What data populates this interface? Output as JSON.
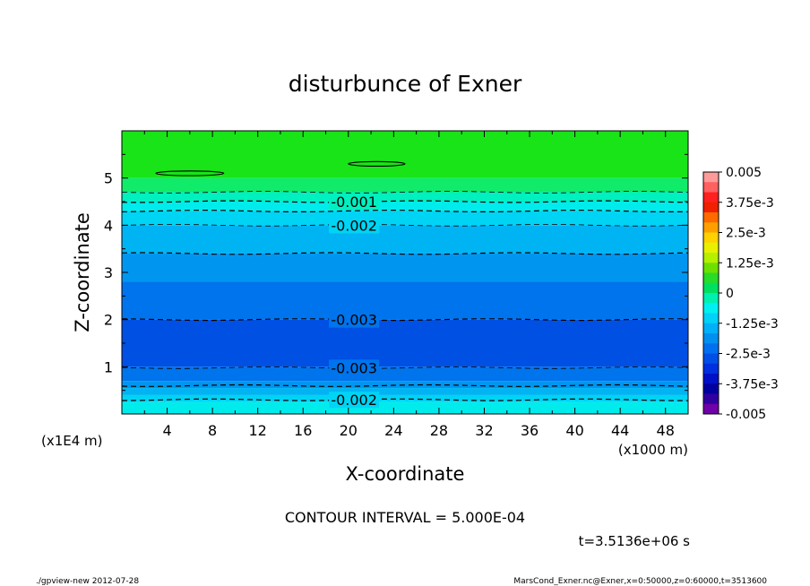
{
  "chart_data": {
    "type": "heatmap",
    "title": "disturbunce of Exner",
    "xlabel": "X-coordinate",
    "ylabel": "Z-coordinate",
    "x_unit": "(x1000 m)",
    "y_unit": "(x1E4 m)",
    "xlim": [
      0,
      50
    ],
    "ylim": [
      0,
      6
    ],
    "x_ticks": [
      "4",
      "8",
      "12",
      "16",
      "20",
      "24",
      "28",
      "32",
      "36",
      "40",
      "44",
      "48"
    ],
    "y_ticks": [
      "1",
      "2",
      "3",
      "4",
      "5"
    ],
    "colorbar": {
      "labels": [
        "0.005",
        "3.75e-3",
        "2.5e-3",
        "1.25e-3",
        "0",
        "-1.25e-3",
        "-2.5e-3",
        "-3.75e-3",
        "-0.005"
      ],
      "colors": [
        "#ff9a9a",
        "#ff6060",
        "#ff2020",
        "#f02000",
        "#ff6a00",
        "#ffa000",
        "#ffd200",
        "#e8f000",
        "#b4f000",
        "#6ee000",
        "#28dc28",
        "#00e060",
        "#00f0b0",
        "#00f0f0",
        "#00d2f8",
        "#00b0f8",
        "#0090f0",
        "#0070f0",
        "#0050e8",
        "#0030e0",
        "#0010c8",
        "#0000a0",
        "#3000a0",
        "#7000a8"
      ]
    },
    "fill_bands": [
      {
        "z": [
          5.0,
          6.0
        ],
        "color": "#18e418"
      },
      {
        "z": [
          4.7,
          5.0
        ],
        "color": "#10ec6a"
      },
      {
        "z": [
          4.5,
          4.7
        ],
        "color": "#00f0c0"
      },
      {
        "z": [
          4.3,
          4.5
        ],
        "color": "#00ecec"
      },
      {
        "z": [
          4.0,
          4.3
        ],
        "color": "#00d4f4"
      },
      {
        "z": [
          3.4,
          4.0
        ],
        "color": "#00b4f4"
      },
      {
        "z": [
          2.8,
          3.4
        ],
        "color": "#0096f0"
      },
      {
        "z": [
          2.0,
          2.8
        ],
        "color": "#0074ec"
      },
      {
        "z": [
          1.0,
          2.0
        ],
        "color": "#0050e4"
      },
      {
        "z": [
          0.7,
          1.0
        ],
        "color": "#0074ec"
      },
      {
        "z": [
          0.55,
          0.7
        ],
        "color": "#0096f0"
      },
      {
        "z": [
          0.4,
          0.55
        ],
        "color": "#00b4f4"
      },
      {
        "z": [
          0.25,
          0.4
        ],
        "color": "#00d4f4"
      },
      {
        "z": [
          0.0,
          0.25
        ],
        "color": "#00ecec"
      }
    ],
    "contours": [
      {
        "z": 4.7,
        "label": "",
        "style": "dashed"
      },
      {
        "z": 4.5,
        "label": "-0.001",
        "style": "dashed"
      },
      {
        "z": 4.3,
        "label": "",
        "style": "dashed"
      },
      {
        "z": 4.0,
        "label": "-0.002",
        "style": "dashed"
      },
      {
        "z": 3.4,
        "label": "",
        "style": "dashed"
      },
      {
        "z": 2.0,
        "label": "-0.003",
        "style": "dashed"
      },
      {
        "z": 0.98,
        "label": "-0.003",
        "style": "dashed"
      },
      {
        "z": 0.6,
        "label": "",
        "style": "dashed"
      },
      {
        "z": 0.3,
        "label": "-0.002",
        "style": "dashed"
      }
    ],
    "closed_contours": [
      {
        "x": [
          3,
          9
        ],
        "z": 5.1
      },
      {
        "x": [
          20,
          25
        ],
        "z": 5.3
      }
    ],
    "contour_interval": "CONTOUR INTERVAL = 5.000E-04",
    "time": "t=3.5136e+06 s"
  },
  "footer": {
    "left": "./gpview-new   2012-07-28",
    "right": "MarsCond_Exner.nc@Exner,x=0:50000,z=0:60000,t=3513600"
  }
}
